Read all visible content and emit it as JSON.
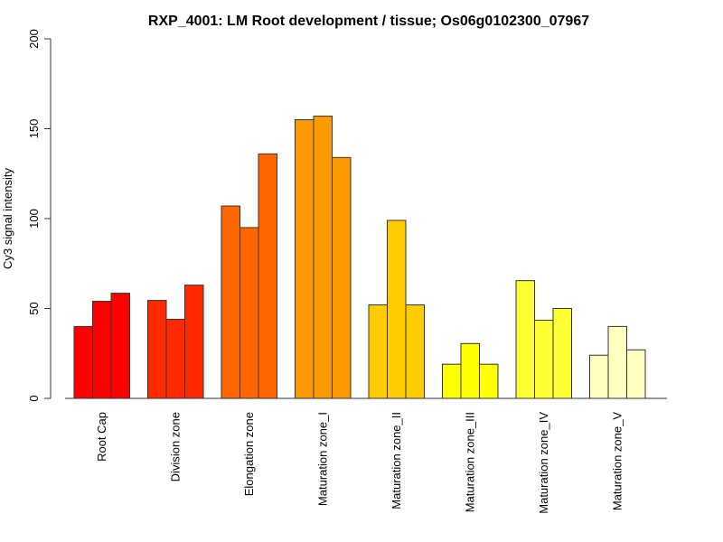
{
  "chart_data": {
    "type": "bar",
    "title": "RXP_4001: LM Root development / tissue; Os06g0102300_07967",
    "xlabel": "",
    "ylabel": "Cy3 signal intensity",
    "ylim": [
      0,
      200
    ],
    "yticks": [
      "0",
      "50",
      "100",
      "150",
      "200"
    ],
    "grid": false,
    "categories": [
      "Root Cap",
      "Division zone",
      "Elongation zone",
      "Maturation zone_I",
      "Maturation zone_II",
      "Maturation zone_III",
      "Maturation zone_IV",
      "Maturation zone_V"
    ],
    "colors": [
      "#FF0000",
      "#FF2A00",
      "#FF6600",
      "#FF9900",
      "#FFCC00",
      "#FFFF00",
      "#FFFF33",
      "#FFFFBF"
    ],
    "values": [
      [
        40,
        54,
        58.5
      ],
      [
        54.5,
        44,
        63
      ],
      [
        107,
        95,
        136
      ],
      [
        155,
        157,
        134
      ],
      [
        52,
        99,
        52
      ],
      [
        19,
        30.5,
        19
      ],
      [
        65.5,
        43.5,
        50
      ],
      [
        24,
        40,
        27
      ]
    ]
  }
}
